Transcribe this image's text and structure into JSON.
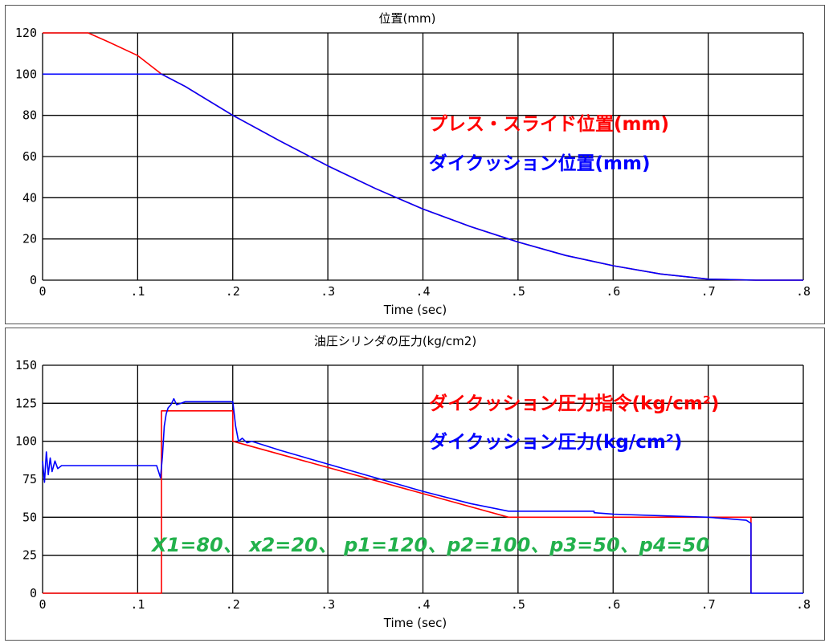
{
  "chart_data": [
    {
      "type": "line",
      "title": "位置(mm)",
      "xlabel": "Time (sec)",
      "ylabel": "",
      "xlim": [
        0,
        0.8
      ],
      "ylim": [
        0,
        125
      ],
      "x_ticks": [
        0,
        0.1,
        0.2,
        0.3,
        0.4,
        0.5,
        0.6,
        0.7,
        0.8
      ],
      "x_tick_labels": [
        "0",
        ".1",
        ".2",
        ".3",
        ".4",
        ".5",
        ".6",
        ".7",
        ".8"
      ],
      "y_ticks": [
        0,
        20,
        40,
        60,
        80,
        100,
        120
      ],
      "y_tick_labels": [
        "0",
        "20",
        "40",
        "60",
        "80",
        "100",
        "120"
      ],
      "grid": true,
      "series": [
        {
          "name": "プレス・スライド位置(mm)",
          "color": "#ff0000",
          "x": [
            0,
            0.048,
            0.07,
            0.1,
            0.125,
            0.15,
            0.2,
            0.25,
            0.3,
            0.35,
            0.4,
            0.45,
            0.5,
            0.55,
            0.6,
            0.65,
            0.7,
            0.75,
            0.8
          ],
          "y": [
            120,
            120,
            115.5,
            109,
            100,
            94,
            80,
            67.5,
            55.5,
            44.5,
            34.5,
            26,
            18.5,
            12,
            7,
            3,
            0.5,
            0,
            0
          ]
        },
        {
          "name": "ダイクッション位置(mm)",
          "color": "#0000ff",
          "x": [
            0,
            0.125,
            0.15,
            0.2,
            0.25,
            0.3,
            0.35,
            0.4,
            0.45,
            0.5,
            0.55,
            0.6,
            0.65,
            0.7,
            0.75,
            0.8
          ],
          "y": [
            100,
            100,
            94,
            80,
            67.5,
            55.5,
            44.5,
            34.5,
            26,
            18.5,
            12,
            7,
            3,
            0.5,
            0,
            0
          ]
        }
      ]
    },
    {
      "type": "line",
      "title": "油圧シリンダの圧力(kg/cm2)",
      "xlabel": "Time (sec)",
      "ylabel": "",
      "xlim": [
        0,
        0.8
      ],
      "ylim": [
        0,
        150
      ],
      "x_ticks": [
        0,
        0.1,
        0.2,
        0.3,
        0.4,
        0.5,
        0.6,
        0.7,
        0.8
      ],
      "x_tick_labels": [
        "0",
        ".1",
        ".2",
        ".3",
        ".4",
        ".5",
        ".6",
        ".7",
        ".8"
      ],
      "y_ticks": [
        0,
        25,
        50,
        75,
        100,
        125,
        150
      ],
      "y_tick_labels": [
        "0",
        "25",
        "50",
        "75",
        "100",
        "125",
        "150"
      ],
      "grid": true,
      "series": [
        {
          "name": "ダイクッション圧力指令(kg/cm²)",
          "color": "#ff0000",
          "x": [
            0,
            0.125,
            0.125,
            0.2,
            0.2,
            0.49,
            0.745,
            0.745
          ],
          "y": [
            0,
            0,
            120,
            120,
            100,
            50,
            50,
            0
          ]
        },
        {
          "name": "ダイクッション圧力(kg/cm²)",
          "color": "#0000ff",
          "x": [
            0,
            0.002,
            0.004,
            0.006,
            0.008,
            0.01,
            0.013,
            0.016,
            0.02,
            0.025,
            0.12,
            0.124,
            0.126,
            0.128,
            0.13,
            0.132,
            0.135,
            0.138,
            0.141,
            0.15,
            0.16,
            0.17,
            0.18,
            0.19,
            0.2,
            0.203,
            0.206,
            0.21,
            0.215,
            0.22,
            0.25,
            0.3,
            0.35,
            0.4,
            0.45,
            0.49,
            0.5,
            0.55,
            0.58,
            0.58,
            0.6,
            0.65,
            0.7,
            0.74,
            0.745,
            0.745,
            0.8
          ],
          "y": [
            87,
            73,
            93,
            78,
            89,
            80,
            87,
            82,
            84,
            84,
            84,
            76,
            90,
            110,
            118,
            122,
            124,
            128,
            124,
            126,
            126,
            126,
            126,
            126,
            126,
            110,
            100,
            102,
            99,
            100,
            94,
            85,
            76,
            67,
            59,
            54,
            54,
            54,
            54,
            53,
            52,
            51,
            50,
            48,
            46,
            0,
            0
          ]
        }
      ],
      "annotation": "X1=80、 x2=20、 p1=120、p2=100、p3=50、p4=50"
    }
  ]
}
